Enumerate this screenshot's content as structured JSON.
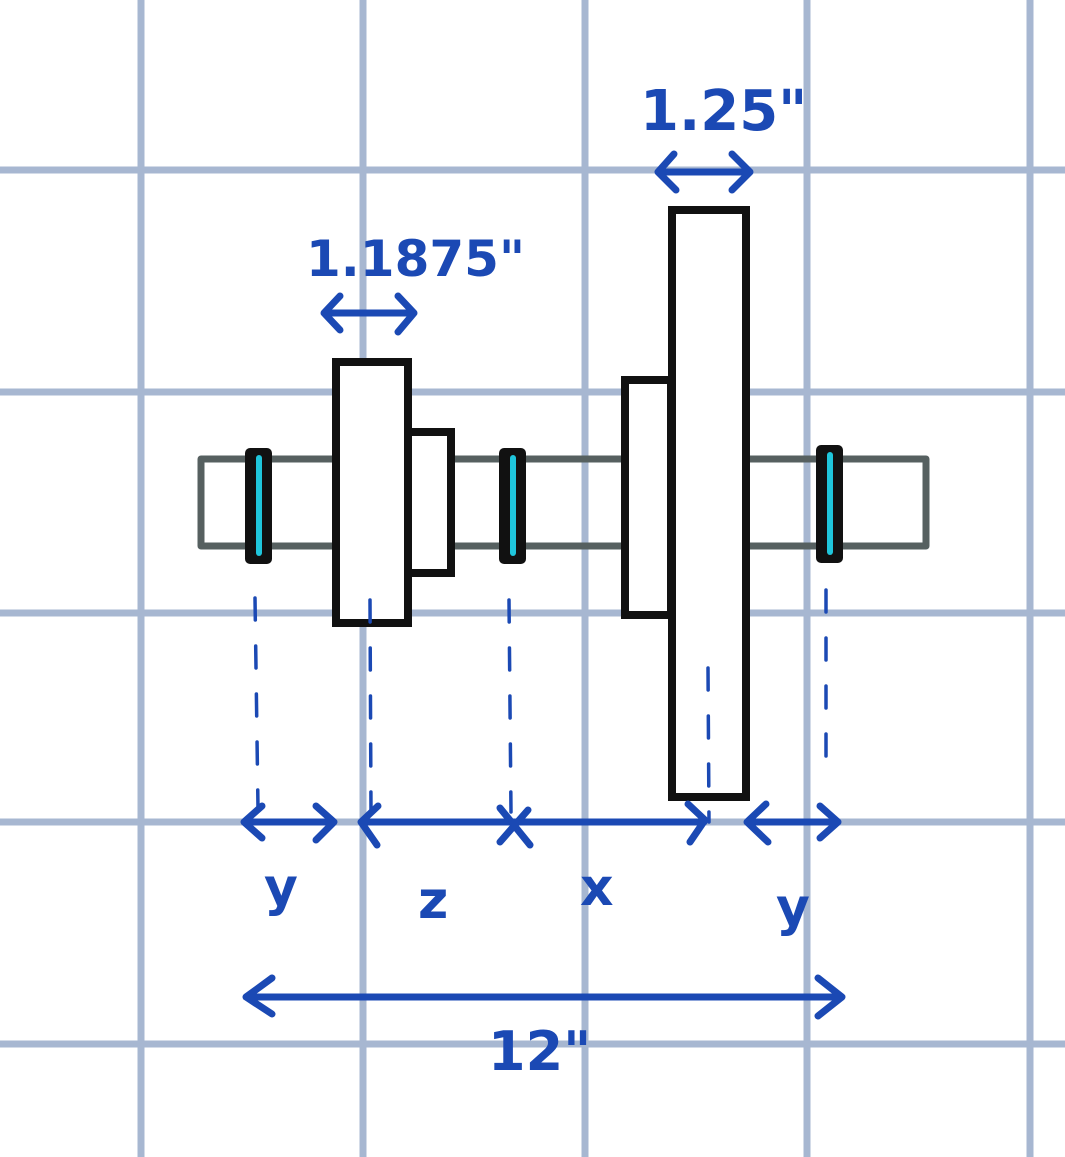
{
  "diagram": {
    "labels": {
      "hub_width": "1.25\"",
      "gear_width": "1.1875\"",
      "spacing_y_left": "y",
      "spacing_z": "z",
      "spacing_x": "x",
      "spacing_y_right": "y",
      "overall_length": "12\""
    },
    "colors": {
      "grid": "#a7b7d1",
      "ink": "#1b49b4",
      "outline": "#111111",
      "shaft": "#566060",
      "collar": "#1fc6dc"
    }
  }
}
